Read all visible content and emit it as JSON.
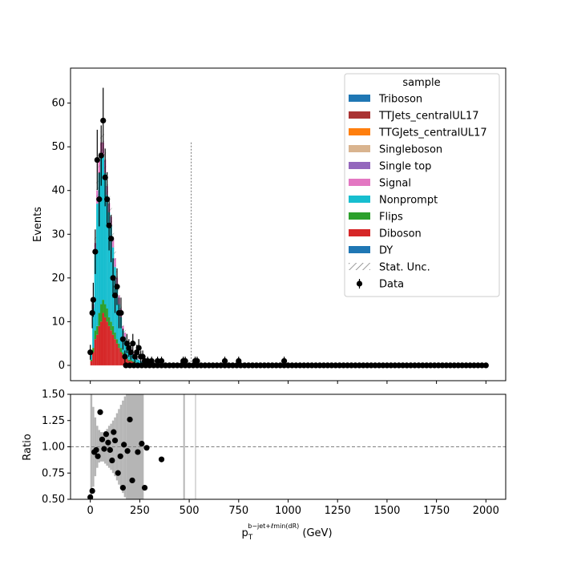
{
  "chart_data": [
    {
      "type": "bar",
      "stacked": true,
      "panel": "main",
      "xlabel": "p_T^{b-jet+ℓ_min(dR)} (GeV)",
      "xlabel_main": "p",
      "xlabel_sub": "T",
      "xlabel_sup": "b−jet+ℓmin(dR)",
      "xlabel_unit": " (GeV)",
      "ylabel": "Events",
      "xlim": [
        -100,
        2100
      ],
      "ylim": [
        -3.5,
        68
      ],
      "x_ticks": [
        0,
        250,
        500,
        750,
        1000,
        1250,
        1500,
        1750,
        2000
      ],
      "y_ticks": [
        0,
        10,
        20,
        30,
        40,
        50,
        60
      ],
      "grid": false,
      "legend_title": "sample",
      "legend_position": "top-right",
      "series": [
        {
          "name": "Triboson",
          "color": "#1f77b4",
          "kind": "stack"
        },
        {
          "name": "TTJets_centralUL17",
          "color": "#aa3333",
          "kind": "stack"
        },
        {
          "name": "TTGJets_centralUL17",
          "color": "#ff7f0e",
          "kind": "stack"
        },
        {
          "name": "Singleboson",
          "color": "#d9b48f",
          "kind": "stack"
        },
        {
          "name": "Single top",
          "color": "#9467bd",
          "kind": "stack"
        },
        {
          "name": "Signal",
          "color": "#e377c2",
          "kind": "stack"
        },
        {
          "name": "Nonprompt",
          "color": "#17becf",
          "kind": "stack"
        },
        {
          "name": "Flips",
          "color": "#2ca02c",
          "kind": "stack"
        },
        {
          "name": "Diboson",
          "color": "#d62728",
          "kind": "stack"
        },
        {
          "name": "DY",
          "color": "#1f77b4",
          "kind": "stack"
        },
        {
          "name": "Stat. Unc.",
          "color": "#888888",
          "kind": "hatch"
        },
        {
          "name": "Data",
          "color": "#000000",
          "kind": "errorbar"
        }
      ],
      "stack_bins": [
        {
          "x": 0,
          "diboson": 1,
          "flips": 0.3,
          "nonprompt": 1.5,
          "signal": 0.2
        },
        {
          "x": 10,
          "diboson": 3,
          "flips": 1,
          "nonprompt": 9,
          "signal": 1
        },
        {
          "x": 20,
          "diboson": 6,
          "flips": 2,
          "nonprompt": 18,
          "signal": 2
        },
        {
          "x": 30,
          "diboson": 7,
          "flips": 2,
          "nonprompt": 28,
          "signal": 3
        },
        {
          "x": 40,
          "diboson": 9,
          "flips": 3,
          "nonprompt": 32,
          "signal": 3
        },
        {
          "x": 50,
          "diboson": 10,
          "flips": 4,
          "nonprompt": 34,
          "signal": 3
        },
        {
          "x": 60,
          "diboson": 12,
          "flips": 3,
          "nonprompt": 33,
          "signal": 3
        },
        {
          "x": 70,
          "diboson": 11,
          "flips": 3,
          "nonprompt": 30,
          "signal": 3
        },
        {
          "x": 80,
          "diboson": 10,
          "flips": 3,
          "nonprompt": 26,
          "signal": 2
        },
        {
          "x": 90,
          "diboson": 9,
          "flips": 2,
          "nonprompt": 24,
          "signal": 2
        },
        {
          "x": 100,
          "diboson": 8,
          "flips": 2,
          "nonprompt": 22,
          "signal": 2
        },
        {
          "x": 110,
          "diboson": 7,
          "flips": 2,
          "nonprompt": 18,
          "signal": 2
        },
        {
          "x": 120,
          "diboson": 6,
          "flips": 1.5,
          "nonprompt": 15,
          "signal": 2
        },
        {
          "x": 130,
          "diboson": 5,
          "flips": 1,
          "nonprompt": 12,
          "signal": 2
        },
        {
          "x": 140,
          "diboson": 4,
          "flips": 1,
          "nonprompt": 9,
          "signal": 2
        },
        {
          "x": 150,
          "diboson": 3,
          "flips": 1,
          "nonprompt": 7,
          "signal": 2
        },
        {
          "x": 160,
          "diboson": 2.5,
          "flips": 0.5,
          "nonprompt": 5,
          "signal": 1
        },
        {
          "x": 170,
          "diboson": 2,
          "flips": 0.5,
          "nonprompt": 4,
          "signal": 1
        },
        {
          "x": 180,
          "diboson": 1.5,
          "flips": 0.5,
          "nonprompt": 3,
          "signal": 0.5
        },
        {
          "x": 190,
          "diboson": 1,
          "flips": 0.3,
          "nonprompt": 2.5,
          "signal": 0.5
        },
        {
          "x": 200,
          "diboson": 1,
          "flips": 0.3,
          "nonprompt": 2,
          "signal": 0.5
        },
        {
          "x": 210,
          "diboson": 0.8,
          "flips": 0.2,
          "nonprompt": 1.5,
          "signal": 0.3
        },
        {
          "x": 220,
          "diboson": 0.6,
          "flips": 0.2,
          "nonprompt": 1.2,
          "signal": 0.2
        },
        {
          "x": 230,
          "diboson": 0.5,
          "flips": 0.1,
          "nonprompt": 1,
          "signal": 0.2
        },
        {
          "x": 240,
          "diboson": 0.4,
          "flips": 0.1,
          "nonprompt": 0.8,
          "signal": 0.1
        },
        {
          "x": 250,
          "diboson": 0.3,
          "flips": 0.1,
          "nonprompt": 0.6,
          "signal": 0.1
        },
        {
          "x": 260,
          "diboson": 0.2,
          "flips": 0.1,
          "nonprompt": 0.5,
          "signal": 0.1
        },
        {
          "x": 270,
          "diboson": 0.2,
          "flips": 0,
          "nonprompt": 0.3,
          "signal": 0
        },
        {
          "x": 280,
          "diboson": 0.1,
          "flips": 0,
          "nonprompt": 0.2,
          "signal": 0
        },
        {
          "x": 290,
          "diboson": 0.1,
          "flips": 0,
          "nonprompt": 0.1,
          "signal": 0
        }
      ],
      "stat_unc_line": {
        "x": 510,
        "y_top": 51
      },
      "data_points": [
        {
          "x": 0,
          "y": 3,
          "err": 1.7
        },
        {
          "x": 10,
          "y": 12,
          "err": 3.5
        },
        {
          "x": 15,
          "y": 15,
          "err": 3.9
        },
        {
          "x": 25,
          "y": 26,
          "err": 5.1
        },
        {
          "x": 35,
          "y": 47,
          "err": 6.9
        },
        {
          "x": 45,
          "y": 38,
          "err": 6.2
        },
        {
          "x": 55,
          "y": 48,
          "err": 6.9
        },
        {
          "x": 65,
          "y": 56,
          "err": 7.5
        },
        {
          "x": 75,
          "y": 43,
          "err": 6.6
        },
        {
          "x": 85,
          "y": 38,
          "err": 6.2
        },
        {
          "x": 95,
          "y": 32,
          "err": 5.7
        },
        {
          "x": 105,
          "y": 29,
          "err": 5.4
        },
        {
          "x": 115,
          "y": 20,
          "err": 4.5
        },
        {
          "x": 125,
          "y": 16,
          "err": 4.0
        },
        {
          "x": 135,
          "y": 18,
          "err": 4.2
        },
        {
          "x": 145,
          "y": 12,
          "err": 3.5
        },
        {
          "x": 155,
          "y": 12,
          "err": 3.5
        },
        {
          "x": 165,
          "y": 6,
          "err": 2.4
        },
        {
          "x": 175,
          "y": 2,
          "err": 1.4
        },
        {
          "x": 185,
          "y": 5,
          "err": 2.2
        },
        {
          "x": 195,
          "y": 4,
          "err": 2.0
        },
        {
          "x": 205,
          "y": 3,
          "err": 1.7
        },
        {
          "x": 215,
          "y": 5,
          "err": 2.2
        },
        {
          "x": 225,
          "y": 2,
          "err": 1.4
        },
        {
          "x": 235,
          "y": 3,
          "err": 1.7
        },
        {
          "x": 245,
          "y": 4,
          "err": 2.0
        },
        {
          "x": 255,
          "y": 2,
          "err": 1.4
        },
        {
          "x": 265,
          "y": 2,
          "err": 1.4
        },
        {
          "x": 275,
          "y": 1,
          "err": 1.0
        },
        {
          "x": 290,
          "y": 1,
          "err": 1.0
        },
        {
          "x": 310,
          "y": 1,
          "err": 1.0
        },
        {
          "x": 340,
          "y": 1,
          "err": 1.0
        },
        {
          "x": 360,
          "y": 1,
          "err": 1.0
        },
        {
          "x": 470,
          "y": 1,
          "err": 1.0
        },
        {
          "x": 480,
          "y": 1,
          "err": 1.0
        },
        {
          "x": 530,
          "y": 1,
          "err": 1.0
        },
        {
          "x": 540,
          "y": 1,
          "err": 1.0
        },
        {
          "x": 680,
          "y": 1,
          "err": 1.0
        },
        {
          "x": 750,
          "y": 1,
          "err": 1.0
        },
        {
          "x": 980,
          "y": 1,
          "err": 1.0
        }
      ],
      "zero_points": {
        "start": 180,
        "end": 2000,
        "step": 20
      }
    },
    {
      "type": "scatter",
      "panel": "ratio",
      "ylabel": "Ratio",
      "xlim": [
        -100,
        2100
      ],
      "ylim": [
        0.5,
        1.5
      ],
      "x_ticks": [
        0,
        250,
        500,
        750,
        1000,
        1250,
        1500,
        1750,
        2000
      ],
      "y_ticks": [
        0.5,
        0.75,
        1.0,
        1.25,
        1.5
      ],
      "y_tick_labels": [
        "0.50",
        "0.75",
        "1.00",
        "1.25",
        "1.50"
      ],
      "reference_line": 1.0,
      "unc_bands": [
        {
          "x0": 0,
          "x1": 10,
          "lo": 0.5,
          "hi": 1.5
        },
        {
          "x0": 10,
          "x1": 20,
          "lo": 0.62,
          "hi": 1.38
        },
        {
          "x0": 20,
          "x1": 30,
          "lo": 0.72,
          "hi": 1.28
        },
        {
          "x0": 30,
          "x1": 40,
          "lo": 0.8,
          "hi": 1.2
        },
        {
          "x0": 40,
          "x1": 50,
          "lo": 0.85,
          "hi": 1.16
        },
        {
          "x0": 50,
          "x1": 60,
          "lo": 0.86,
          "hi": 1.14
        },
        {
          "x0": 60,
          "x1": 70,
          "lo": 0.86,
          "hi": 1.14
        },
        {
          "x0": 70,
          "x1": 80,
          "lo": 0.84,
          "hi": 1.15
        },
        {
          "x0": 80,
          "x1": 90,
          "lo": 0.82,
          "hi": 1.17
        },
        {
          "x0": 90,
          "x1": 100,
          "lo": 0.8,
          "hi": 1.2
        },
        {
          "x0": 100,
          "x1": 110,
          "lo": 0.78,
          "hi": 1.22
        },
        {
          "x0": 110,
          "x1": 120,
          "lo": 0.75,
          "hi": 1.25
        },
        {
          "x0": 120,
          "x1": 130,
          "lo": 0.72,
          "hi": 1.28
        },
        {
          "x0": 130,
          "x1": 140,
          "lo": 0.68,
          "hi": 1.32
        },
        {
          "x0": 140,
          "x1": 150,
          "lo": 0.64,
          "hi": 1.36
        },
        {
          "x0": 150,
          "x1": 160,
          "lo": 0.6,
          "hi": 1.4
        },
        {
          "x0": 160,
          "x1": 170,
          "lo": 0.56,
          "hi": 1.44
        },
        {
          "x0": 170,
          "x1": 180,
          "lo": 0.52,
          "hi": 1.48
        },
        {
          "x0": 180,
          "x1": 270,
          "lo": 0.5,
          "hi": 1.5
        },
        {
          "x0": 470,
          "x1": 478,
          "lo": 0.5,
          "hi": 1.5
        },
        {
          "x0": 530,
          "x1": 534,
          "lo": 0.5,
          "hi": 1.5
        }
      ],
      "points": [
        {
          "x": 0,
          "y": 0.52
        },
        {
          "x": 10,
          "y": 0.58
        },
        {
          "x": 20,
          "y": 0.95
        },
        {
          "x": 30,
          "y": 0.97
        },
        {
          "x": 38,
          "y": 0.91
        },
        {
          "x": 50,
          "y": 1.33
        },
        {
          "x": 60,
          "y": 1.07
        },
        {
          "x": 70,
          "y": 0.98
        },
        {
          "x": 80,
          "y": 1.12
        },
        {
          "x": 90,
          "y": 1.04
        },
        {
          "x": 100,
          "y": 0.97
        },
        {
          "x": 110,
          "y": 0.87
        },
        {
          "x": 118,
          "y": 1.14
        },
        {
          "x": 125,
          "y": 1.06
        },
        {
          "x": 140,
          "y": 0.75
        },
        {
          "x": 152,
          "y": 0.91
        },
        {
          "x": 165,
          "y": 0.61
        },
        {
          "x": 170,
          "y": 1.02
        },
        {
          "x": 188,
          "y": 0.96
        },
        {
          "x": 200,
          "y": 1.26
        },
        {
          "x": 212,
          "y": 0.68
        },
        {
          "x": 240,
          "y": 0.95
        },
        {
          "x": 260,
          "y": 1.03
        },
        {
          "x": 275,
          "y": 0.61
        },
        {
          "x": 285,
          "y": 0.99
        },
        {
          "x": 360,
          "y": 0.88
        }
      ]
    }
  ]
}
